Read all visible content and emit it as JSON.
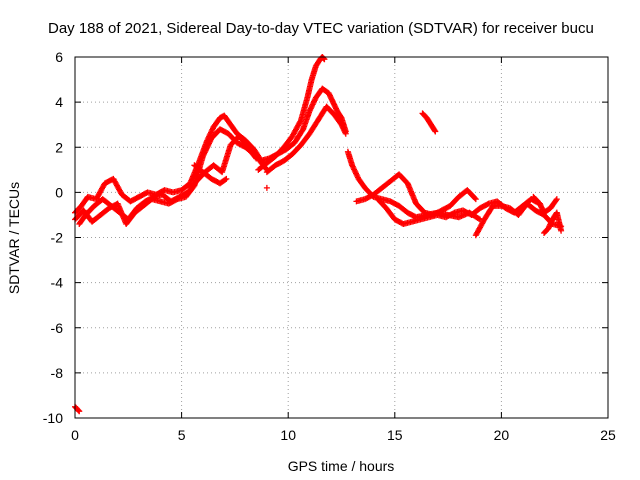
{
  "chart_data": {
    "type": "scatter",
    "title": "Day 188 of 2021, Sidereal Day-to-day VTEC variation (SDTVAR) for receiver bucu",
    "xlabel": "GPS time / hours",
    "ylabel": "SDTVAR / TECUs",
    "xlim": [
      0,
      25
    ],
    "ylim": [
      -10,
      6
    ],
    "xticks": [
      "0",
      "5",
      "10",
      "15",
      "20",
      "25"
    ],
    "yticks": [
      "-10",
      "-8",
      "-6",
      "-4",
      "-2",
      "0",
      "2",
      "4",
      "6"
    ],
    "grid": true,
    "marker": "+",
    "color": "#ff0000",
    "series": [
      {
        "name": "trace-a",
        "x": [
          0.0,
          0.3,
          0.6,
          1.0,
          1.4,
          1.8,
          2.2,
          2.6,
          3.0,
          3.4,
          3.8,
          4.2,
          4.6,
          5.0,
          5.4,
          5.8,
          6.2,
          6.5,
          6.8,
          7.0,
          7.3,
          7.6,
          8.0,
          8.4,
          8.8
        ],
        "y": [
          -0.9,
          -0.6,
          -0.2,
          -0.3,
          0.4,
          0.6,
          -0.1,
          -0.4,
          -0.2,
          0.0,
          -0.1,
          0.1,
          0.0,
          0.1,
          0.4,
          1.3,
          2.3,
          2.9,
          3.3,
          3.4,
          3.0,
          2.6,
          2.3,
          1.9,
          1.3
        ]
      },
      {
        "name": "trace-b",
        "x": [
          0.0,
          0.4,
          0.8,
          1.2,
          1.6,
          2.0,
          2.4,
          2.8,
          3.2,
          3.6,
          4.0,
          4.4,
          4.8,
          5.2,
          5.6,
          6.0,
          6.4,
          6.8,
          7.2,
          7.6,
          8.0,
          8.5,
          9.0
        ],
        "y": [
          -1.2,
          -0.8,
          -1.3,
          -1.0,
          -0.7,
          -0.5,
          -1.4,
          -0.9,
          -0.6,
          -0.3,
          -0.4,
          -0.5,
          -0.3,
          -0.2,
          0.3,
          1.6,
          2.4,
          2.8,
          2.6,
          2.2,
          2.0,
          1.6,
          1.0
        ]
      },
      {
        "name": "trace-c",
        "x": [
          0.2,
          0.5,
          0.9,
          1.3,
          1.7,
          2.1,
          2.5,
          2.9,
          3.3,
          3.7,
          4.1,
          4.5,
          4.9,
          5.3,
          5.7,
          6.1,
          6.5,
          6.9,
          7.3,
          7.7,
          8.1,
          8.5
        ],
        "y": [
          -1.4,
          -1.0,
          -0.6,
          -0.3,
          -0.6,
          -0.9,
          -1.2,
          -0.7,
          -0.4,
          -0.2,
          -0.1,
          -0.4,
          -0.2,
          0.0,
          0.5,
          0.9,
          1.2,
          0.9,
          2.1,
          2.5,
          2.0,
          1.5
        ]
      },
      {
        "name": "trace-d",
        "x": [
          5.6,
          6.0,
          6.4,
          6.8,
          7.1
        ],
        "y": [
          1.2,
          0.9,
          0.6,
          0.4,
          0.6
        ]
      },
      {
        "name": "trace-e",
        "x": [
          8.6,
          9.0,
          9.4,
          9.8,
          10.2,
          10.6,
          10.9,
          11.1,
          11.3,
          11.5,
          11.6,
          11.7
        ],
        "y": [
          1.0,
          1.3,
          1.6,
          2.0,
          2.5,
          3.2,
          4.2,
          5.0,
          5.6,
          5.9,
          6.0,
          5.9
        ]
      },
      {
        "name": "trace-f",
        "x": [
          8.7,
          9.1,
          9.5,
          9.9,
          10.3,
          10.7,
          11.0,
          11.3,
          11.6,
          11.9,
          12.1,
          12.3,
          12.5,
          12.6,
          12.7
        ],
        "y": [
          1.4,
          1.5,
          1.7,
          1.9,
          2.2,
          2.8,
          3.6,
          4.2,
          4.6,
          4.4,
          4.0,
          3.6,
          3.3,
          3.0,
          2.7
        ]
      },
      {
        "name": "trace-g",
        "x": [
          9.0,
          9.4,
          9.8,
          10.2,
          10.6,
          11.0,
          11.4,
          11.8,
          12.2,
          12.5,
          12.7
        ],
        "y": [
          0.9,
          1.2,
          1.4,
          1.7,
          2.1,
          2.6,
          3.2,
          3.8,
          3.4,
          3.0,
          2.6
        ]
      },
      {
        "name": "trace-h",
        "x": [
          12.8,
          13.0,
          13.3,
          13.6,
          14.0,
          14.4,
          14.8,
          15.2,
          15.6,
          16.0,
          16.5,
          17.0,
          17.5,
          18.0,
          18.5,
          19.0
        ],
        "y": [
          1.8,
          1.2,
          0.6,
          0.2,
          -0.2,
          -0.3,
          -0.4,
          -0.6,
          -0.9,
          -1.1,
          -1.0,
          -0.9,
          -1.0,
          -1.1,
          -0.9,
          -1.2
        ]
      },
      {
        "name": "trace-i",
        "x": [
          13.2,
          13.6,
          14.0,
          14.4,
          14.8,
          15.2,
          15.6,
          16.0,
          16.4,
          16.8,
          17.2,
          17.6,
          18.0,
          18.4,
          18.8
        ],
        "y": [
          -0.4,
          -0.3,
          -0.1,
          0.2,
          0.5,
          0.8,
          0.4,
          -0.5,
          -0.9,
          -1.0,
          -0.8,
          -0.6,
          -0.2,
          0.1,
          -0.3
        ]
      },
      {
        "name": "trace-j",
        "x": [
          14.2,
          14.6,
          15.0,
          15.4,
          15.8,
          16.2,
          16.6,
          17.0,
          17.4,
          17.8,
          18.2,
          18.6,
          19.0,
          19.4,
          19.8,
          20.2,
          20.6,
          21.0,
          21.4,
          21.8
        ],
        "y": [
          -0.3,
          -0.7,
          -1.2,
          -1.4,
          -1.3,
          -1.2,
          -1.1,
          -1.0,
          -1.1,
          -0.9,
          -0.8,
          -1.0,
          -0.7,
          -0.5,
          -0.4,
          -0.7,
          -0.9,
          -0.6,
          -0.3,
          -0.5
        ]
      },
      {
        "name": "trace-k",
        "x": [
          16.3,
          16.5,
          16.7,
          16.9
        ],
        "y": [
          3.5,
          3.3,
          3.0,
          2.7
        ]
      },
      {
        "name": "trace-l",
        "x": [
          18.8,
          19.2,
          19.6,
          20.0,
          20.4,
          20.8,
          21.2,
          21.6,
          22.0,
          22.4,
          22.8
        ],
        "y": [
          -1.9,
          -1.2,
          -0.6,
          -0.6,
          -0.7,
          -1.0,
          -0.5,
          -0.8,
          -1.0,
          -1.4,
          -1.5
        ]
      },
      {
        "name": "trace-m",
        "x": [
          22.0,
          22.2,
          22.4,
          22.6,
          22.8
        ],
        "y": [
          -1.8,
          -1.6,
          -1.2,
          -0.9,
          -1.7
        ]
      },
      {
        "name": "trace-n",
        "x": [
          21.5,
          21.8,
          22.0,
          22.3,
          22.6
        ],
        "y": [
          -0.2,
          -0.5,
          -0.9,
          -0.7,
          -0.3
        ]
      },
      {
        "name": "trace-o",
        "x": [
          0.0,
          0.1,
          0.2
        ],
        "y": [
          -9.5,
          -9.6,
          -9.7
        ]
      },
      {
        "name": "outlier",
        "x": [
          9.0
        ],
        "y": [
          0.2
        ]
      }
    ]
  }
}
